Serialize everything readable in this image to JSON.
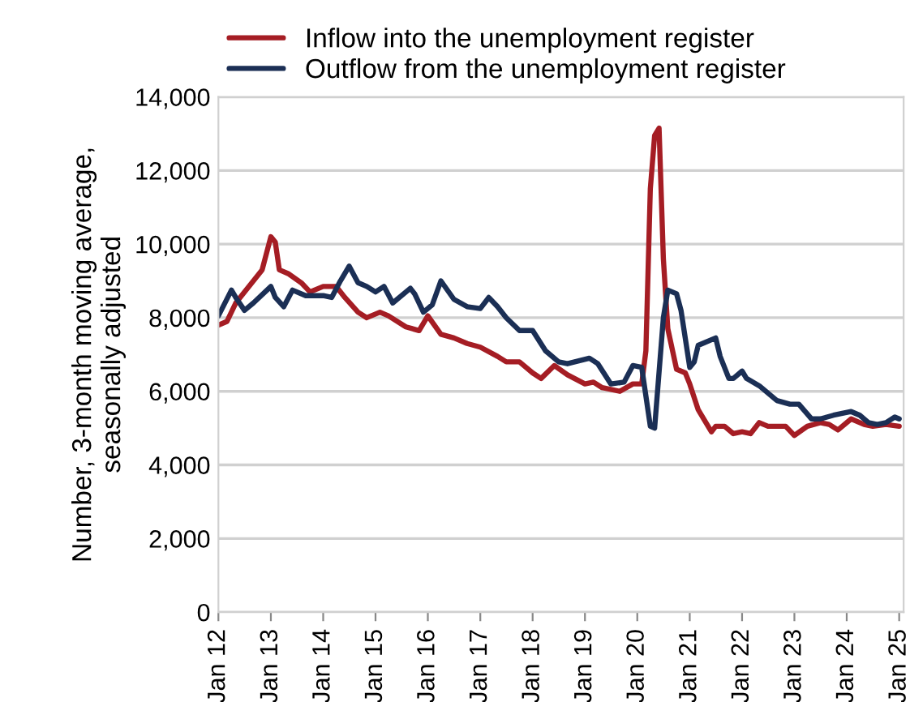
{
  "chart_data": {
    "type": "line",
    "ylabel": "Number, 3-month moving average,\nseasonally adjusted",
    "xlim": [
      "2012-01",
      "2025-02"
    ],
    "ylim": [
      0,
      14000
    ],
    "xticks": [
      {
        "value": "2012-01",
        "label": "Jan 12"
      },
      {
        "value": "2013-01",
        "label": "Jan 13"
      },
      {
        "value": "2014-01",
        "label": "Jan 14"
      },
      {
        "value": "2015-01",
        "label": "Jan 15"
      },
      {
        "value": "2016-01",
        "label": "Jan 16"
      },
      {
        "value": "2017-01",
        "label": "Jan 17"
      },
      {
        "value": "2018-01",
        "label": "Jan 18"
      },
      {
        "value": "2019-01",
        "label": "Jan 19"
      },
      {
        "value": "2020-01",
        "label": "Jan 20"
      },
      {
        "value": "2021-01",
        "label": "Jan 21"
      },
      {
        "value": "2022-01",
        "label": "Jan 22"
      },
      {
        "value": "2023-01",
        "label": "Jan 23"
      },
      {
        "value": "2024-01",
        "label": "Jan 24"
      },
      {
        "value": "2025-01",
        "label": "Jan 25"
      }
    ],
    "yticks": [
      {
        "value": 0,
        "label": "0"
      },
      {
        "value": 2000,
        "label": "2,000"
      },
      {
        "value": 4000,
        "label": "4,000"
      },
      {
        "value": 6000,
        "label": "6,000"
      },
      {
        "value": 8000,
        "label": "8,000"
      },
      {
        "value": 10000,
        "label": "10,000"
      },
      {
        "value": 12000,
        "label": "12,000"
      },
      {
        "value": 14000,
        "label": "14,000"
      }
    ],
    "grid": "y",
    "legend": "top left",
    "marker": "none",
    "line_style": "solid",
    "series": [
      {
        "name": "Inflow into the unemployment register",
        "color": "#a51d24",
        "x": [
          "2012-01",
          "2012-03",
          "2012-05",
          "2012-07",
          "2012-09",
          "2012-11",
          "2013-01",
          "2013-02",
          "2013-03",
          "2013-05",
          "2013-08",
          "2013-10",
          "2014-01",
          "2014-04",
          "2014-06",
          "2014-09",
          "2014-11",
          "2015-02",
          "2015-04",
          "2015-08",
          "2015-11",
          "2016-01",
          "2016-04",
          "2016-07",
          "2016-10",
          "2017-01",
          "2017-05",
          "2017-07",
          "2017-10",
          "2018-01",
          "2018-03",
          "2018-06",
          "2018-09",
          "2019-01",
          "2019-03",
          "2019-05",
          "2019-09",
          "2019-12",
          "2020-02",
          "2020-03",
          "2020-04",
          "2020-05",
          "2020-06",
          "2020-07",
          "2020-08",
          "2020-10",
          "2020-12",
          "2021-01",
          "2021-03",
          "2021-06",
          "2021-07",
          "2021-09",
          "2021-11",
          "2022-01",
          "2022-03",
          "2022-05",
          "2022-07",
          "2022-11",
          "2023-01",
          "2023-04",
          "2023-07",
          "2023-09",
          "2023-11",
          "2024-02",
          "2024-05",
          "2024-07",
          "2024-10",
          "2025-01"
        ],
        "values": [
          7800,
          7900,
          8400,
          8700,
          9000,
          9300,
          10200,
          10050,
          9300,
          9200,
          8950,
          8700,
          8850,
          8850,
          8550,
          8150,
          8000,
          8150,
          8050,
          7750,
          7650,
          8050,
          7550,
          7450,
          7300,
          7200,
          6950,
          6800,
          6800,
          6500,
          6350,
          6700,
          6450,
          6200,
          6250,
          6100,
          6000,
          6200,
          6200,
          7100,
          11500,
          12950,
          13150,
          9600,
          7700,
          6600,
          6500,
          6200,
          5500,
          4900,
          5050,
          5050,
          4850,
          4900,
          4850,
          5150,
          5050,
          5050,
          4800,
          5050,
          5150,
          5100,
          4950,
          5250,
          5100,
          5050,
          5100,
          5050
        ]
      },
      {
        "name": "Outflow from the unemployment register",
        "color": "#1b2f55",
        "x": [
          "2012-01",
          "2012-04",
          "2012-05",
          "2012-07",
          "2012-09",
          "2013-01",
          "2013-02",
          "2013-04",
          "2013-06",
          "2013-09",
          "2014-01",
          "2014-03",
          "2014-05",
          "2014-07",
          "2014-09",
          "2014-11",
          "2015-01",
          "2015-03",
          "2015-05",
          "2015-09",
          "2015-10",
          "2015-12",
          "2016-02",
          "2016-04",
          "2016-07",
          "2016-10",
          "2017-01",
          "2017-03",
          "2017-05",
          "2017-07",
          "2017-10",
          "2018-01",
          "2018-04",
          "2018-07",
          "2018-09",
          "2019-02",
          "2019-04",
          "2019-07",
          "2019-10",
          "2019-12",
          "2020-02",
          "2020-04",
          "2020-05",
          "2020-07",
          "2020-08",
          "2020-10",
          "2020-11",
          "2021-01",
          "2021-02",
          "2021-03",
          "2021-07",
          "2021-08",
          "2021-10",
          "2021-11",
          "2022-01",
          "2022-02",
          "2022-05",
          "2022-09",
          "2022-12",
          "2023-02",
          "2023-05",
          "2023-07",
          "2023-10",
          "2023-12",
          "2024-02",
          "2024-04",
          "2024-06",
          "2024-08",
          "2024-10",
          "2024-12",
          "2025-01"
        ],
        "values": [
          8050,
          8750,
          8550,
          8200,
          8400,
          8850,
          8550,
          8300,
          8750,
          8600,
          8600,
          8550,
          9000,
          9400,
          8950,
          8850,
          8700,
          8850,
          8400,
          8800,
          8650,
          8150,
          8350,
          9000,
          8500,
          8300,
          8250,
          8550,
          8300,
          8000,
          7650,
          7650,
          7100,
          6800,
          6750,
          6900,
          6750,
          6200,
          6250,
          6700,
          6650,
          5050,
          5000,
          8000,
          8750,
          8650,
          8200,
          6650,
          6800,
          7250,
          7450,
          6950,
          6350,
          6350,
          6550,
          6350,
          6150,
          5750,
          5650,
          5650,
          5250,
          5250,
          5350,
          5400,
          5450,
          5350,
          5150,
          5100,
          5150,
          5300,
          5250
        ]
      }
    ]
  }
}
